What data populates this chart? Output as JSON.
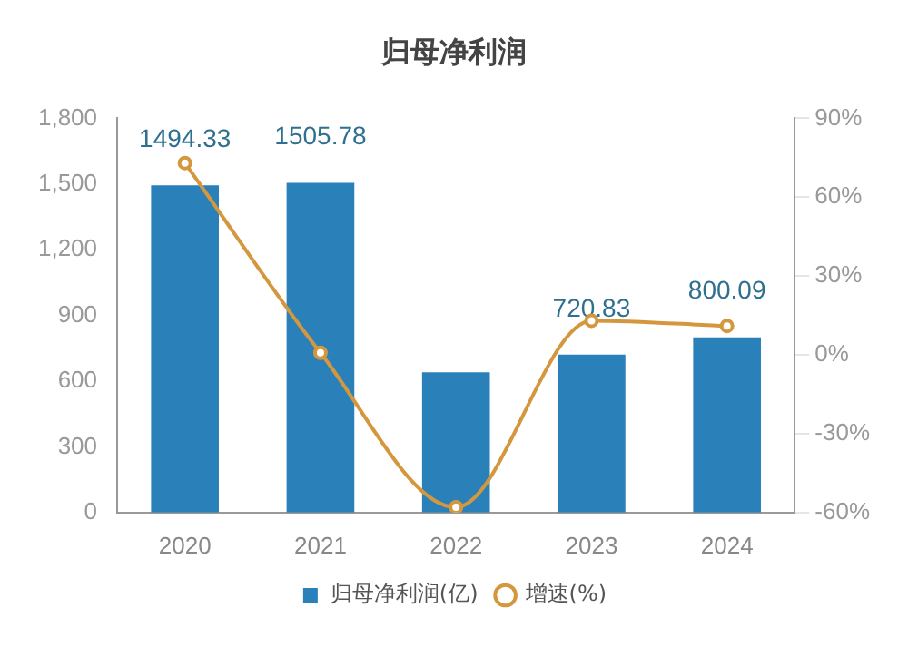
{
  "chart_data": {
    "type": "bar",
    "title": "归母净利润",
    "categories": [
      "2020",
      "2021",
      "2022",
      "2023",
      "2024"
    ],
    "series": [
      {
        "name": "归母净利润(亿)",
        "color": "#2a80b9",
        "values": [
          1494.33,
          1505.78,
          640,
          720.83,
          800.09
        ],
        "value_labels": [
          "1494.33",
          "1505.78",
          null,
          "720.83",
          "800.09"
        ]
      },
      {
        "name": "增速(%)",
        "type": "line",
        "axis": "y2",
        "color": "#d4973e",
        "values": [
          73,
          0.8,
          -58,
          13,
          11
        ],
        "marker": "circle"
      }
    ],
    "ylim": [
      0,
      1800
    ],
    "yticks": [
      {
        "value": 0,
        "label": "0"
      },
      {
        "value": 300,
        "label": "300"
      },
      {
        "value": 600,
        "label": "600"
      },
      {
        "value": 900,
        "label": "900"
      },
      {
        "value": 1200,
        "label": "1,200"
      },
      {
        "value": 1500,
        "label": "1,500"
      },
      {
        "value": 1800,
        "label": "1,800"
      }
    ],
    "y2lim": [
      -60,
      90
    ],
    "y2ticks": [
      {
        "value": -60,
        "label": "-60%"
      },
      {
        "value": -30,
        "label": "-30%"
      },
      {
        "value": 0,
        "label": "0%"
      },
      {
        "value": 30,
        "label": "30%"
      },
      {
        "value": 60,
        "label": "60%"
      },
      {
        "value": 90,
        "label": "90%"
      }
    ],
    "grid": false,
    "legend": "bottom"
  }
}
